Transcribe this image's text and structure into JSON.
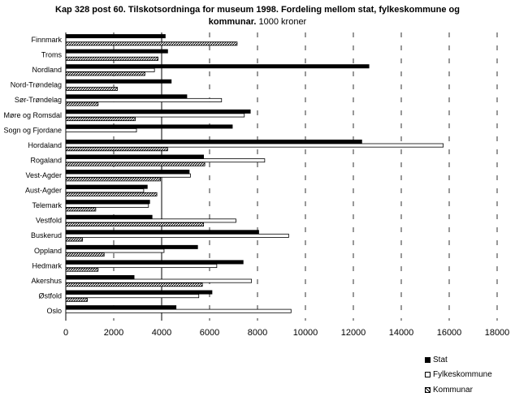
{
  "chart_data": {
    "type": "bar",
    "orientation": "horizontal",
    "title": "Kap 328 post 60. Tilskotsordninga for museum 1998. Fordeling mellom stat, fylkeskommune og",
    "subtitle_bold": "kommunar.",
    "subtitle": "1000 kroner",
    "categories": [
      "Finnmark",
      "Troms",
      "Nordland",
      "Nord-Trøndelag",
      "Sør-Trøndelag",
      "Møre og Romsdal",
      "Sogn og Fjordane",
      "Hordaland",
      "Rogaland",
      "Vest-Agder",
      "Aust-Agder",
      "Telemark",
      "Vestfold",
      "Buskerud",
      "Oppland",
      "Hedmark",
      "Akershus",
      "Østfold",
      "Oslo"
    ],
    "series": [
      {
        "name": "Stat",
        "fill": "#000000",
        "values": [
          4150,
          4250,
          12650,
          4400,
          5050,
          7700,
          6950,
          12350,
          5750,
          5150,
          3400,
          3500,
          3600,
          8050,
          5500,
          7400,
          2850,
          6100,
          4600
        ]
      },
      {
        "name": "Fylkeskommune",
        "fill": "#ffffff",
        "values": [
          0,
          0,
          3700,
          0,
          6500,
          7450,
          2950,
          15750,
          8300,
          5200,
          3250,
          3450,
          7100,
          9300,
          4100,
          6300,
          7750,
          5550,
          9400
        ]
      },
      {
        "name": "Kommunar",
        "fill": "hatched",
        "values": [
          7150,
          3850,
          3300,
          2150,
          1350,
          2900,
          0,
          4250,
          5800,
          3950,
          3800,
          1250,
          5750,
          700,
          1600,
          1350,
          5700,
          900,
          0
        ]
      }
    ],
    "xlim": [
      0,
      18000
    ],
    "xticks": [
      "0",
      "2000",
      "4000",
      "6000",
      "8000",
      "10000",
      "12000",
      "14000",
      "16000",
      "18000"
    ],
    "grid": "vertical",
    "legend_position": "bottom-right"
  }
}
